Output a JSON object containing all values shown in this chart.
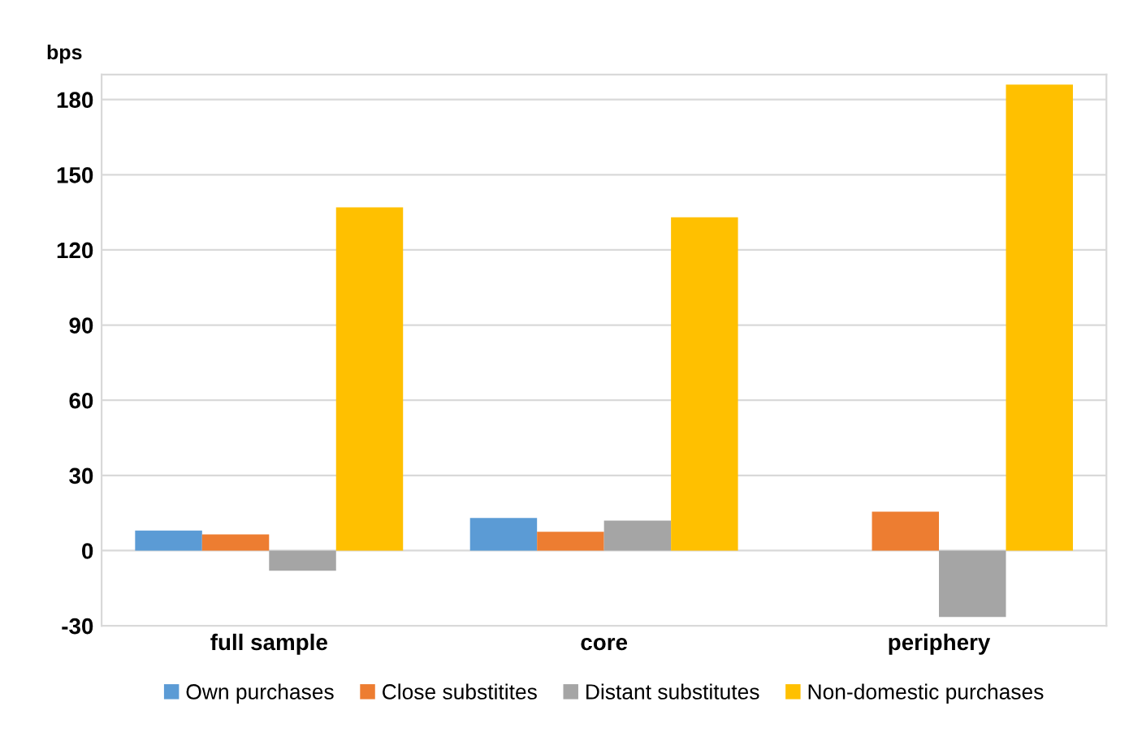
{
  "chart_data": {
    "type": "bar",
    "ylabel": "bps",
    "categories": [
      "full sample",
      "core",
      "periphery"
    ],
    "series": [
      {
        "name": "Own purchases",
        "color": "#5b9bd5",
        "values": [
          8,
          13,
          null
        ]
      },
      {
        "name": "Close substitites",
        "color": "#ed7d31",
        "values": [
          6.5,
          7.5,
          15.5
        ]
      },
      {
        "name": "Distant substitutes",
        "color": "#a5a5a5",
        "values": [
          -8,
          12,
          -26.5
        ]
      },
      {
        "name": "Non-domestic purchases",
        "color": "#ffc000",
        "values": [
          137,
          133,
          186
        ]
      }
    ],
    "ylim": [
      -30,
      190
    ],
    "yticks": [
      -30,
      0,
      30,
      60,
      90,
      120,
      150,
      180
    ],
    "grid": "y",
    "legend": "bottom"
  }
}
